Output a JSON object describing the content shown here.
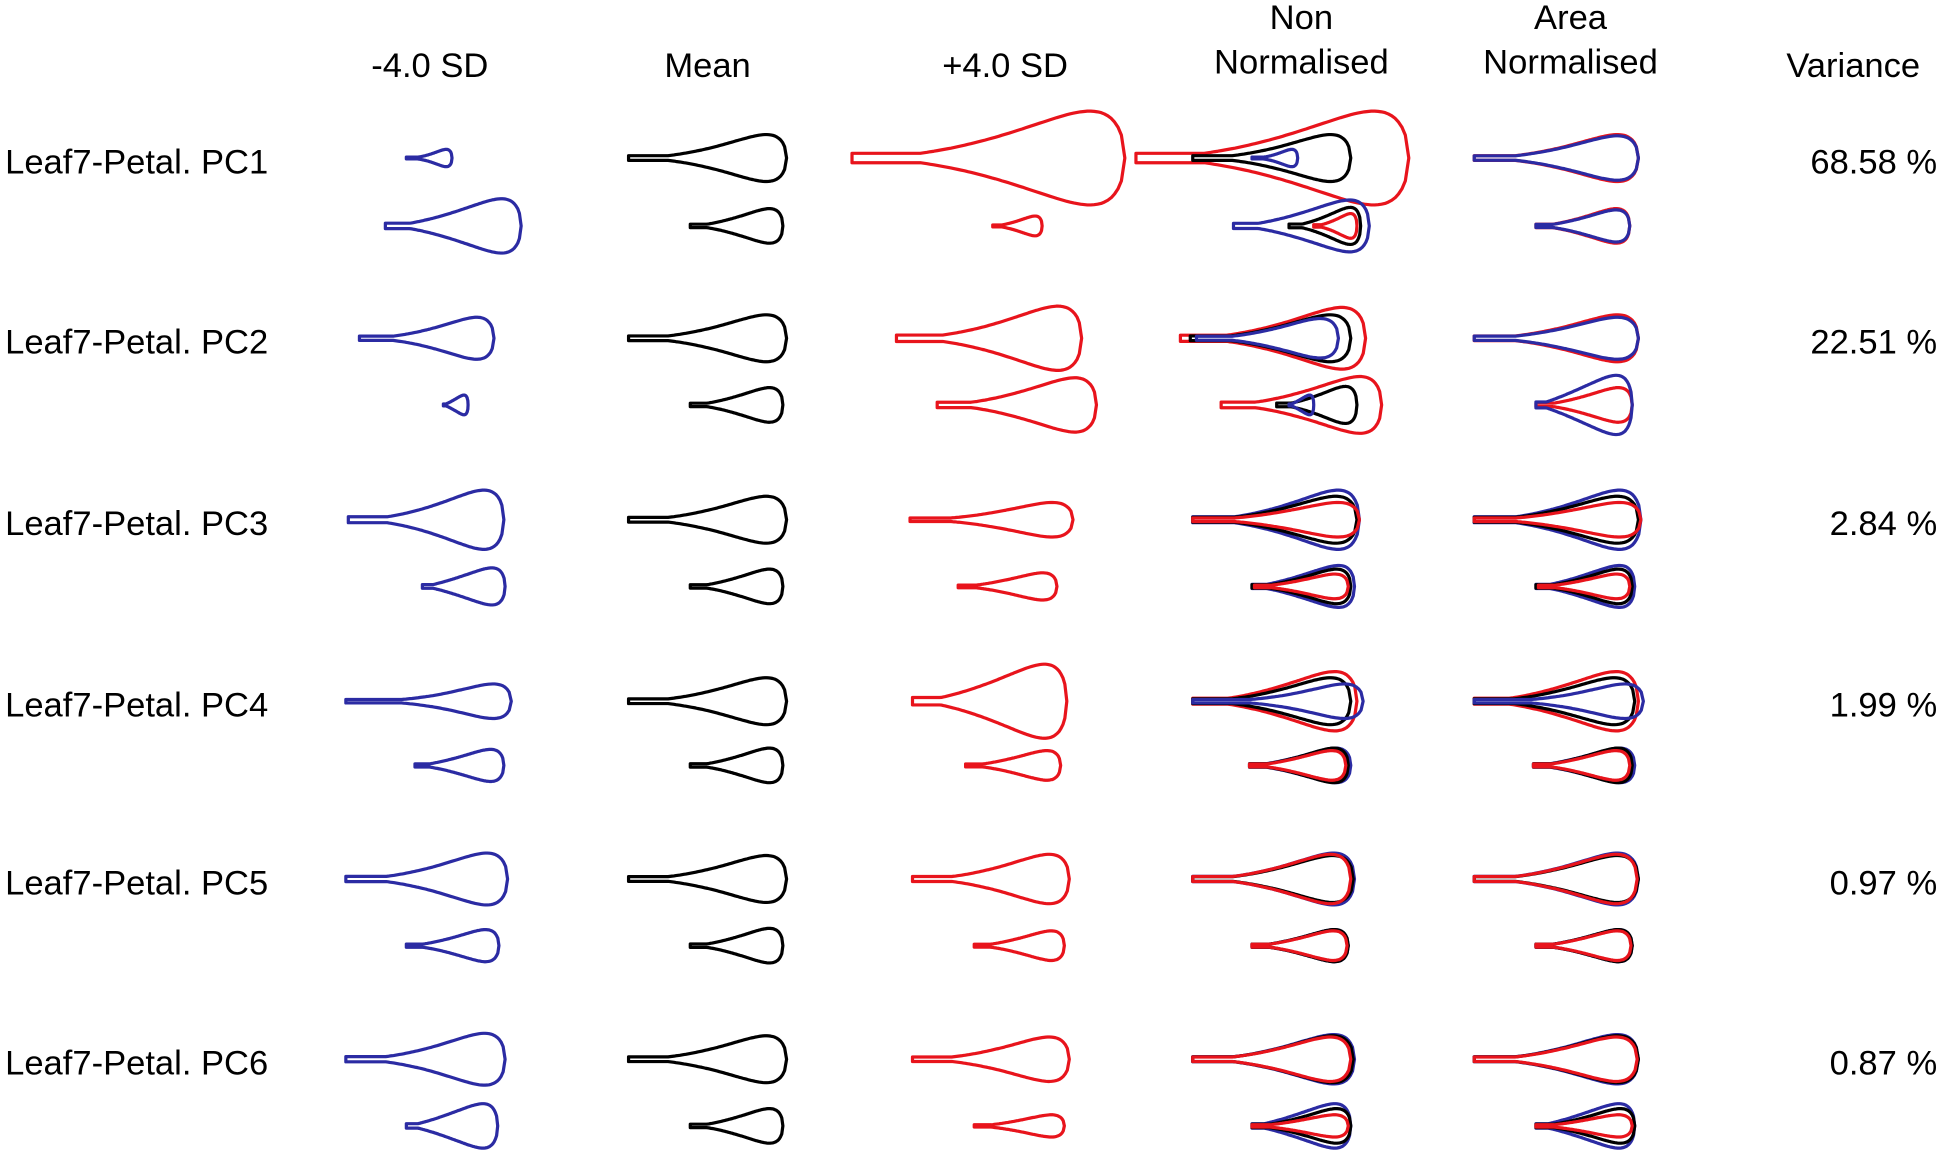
{
  "header": {
    "columns": [
      [
        "-4.0 SD"
      ],
      [
        "Mean"
      ],
      [
        "+4.0 SD"
      ],
      [
        "Non",
        "Normalised"
      ],
      [
        "Area",
        "Normalised"
      ],
      [
        "Variance"
      ]
    ]
  },
  "rows": [
    {
      "label": "Leaf7-Petal. PC1",
      "variance": "68.58 %"
    },
    {
      "label": "Leaf7-Petal. PC2",
      "variance": "22.51 %"
    },
    {
      "label": "Leaf7-Petal. PC3",
      "variance": "2.84 %"
    },
    {
      "label": "Leaf7-Petal. PC4",
      "variance": "1.99 %"
    },
    {
      "label": "Leaf7-Petal. PC5",
      "variance": "0.97 %"
    },
    {
      "label": "Leaf7-Petal. PC6",
      "variance": "0.87 %"
    }
  ]
}
